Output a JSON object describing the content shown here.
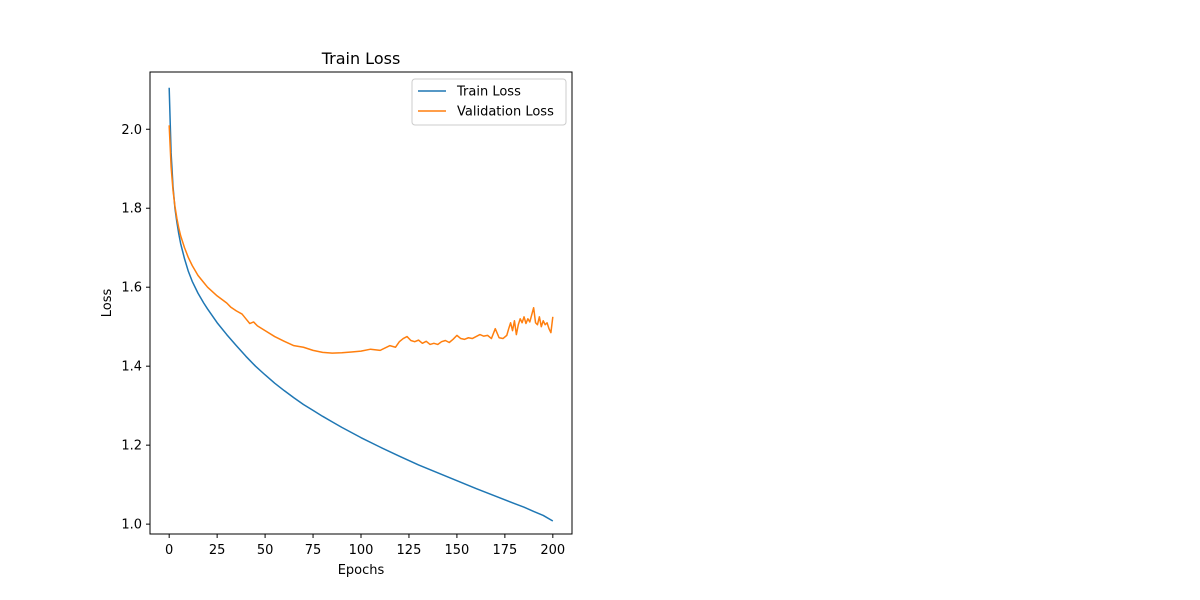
{
  "chart_data": {
    "type": "line",
    "title": "Train Loss",
    "xlabel": "Epochs",
    "ylabel": "Loss",
    "xlim": [
      -10,
      210
    ],
    "ylim": [
      0.975,
      2.145
    ],
    "xticks": [
      0,
      25,
      50,
      75,
      100,
      125,
      150,
      175,
      200
    ],
    "yticks": [
      1.0,
      1.2,
      1.4,
      1.6,
      1.8,
      2.0
    ],
    "ytick_labels": [
      "1.0",
      "1.2",
      "1.4",
      "1.6",
      "1.8",
      "2.0"
    ],
    "grid": false,
    "legend_position": "upper right",
    "series": [
      {
        "name": "Train Loss",
        "color": "#1f77b4",
        "x": [
          0,
          1,
          2,
          3,
          4,
          5,
          6,
          8,
          10,
          12,
          15,
          18,
          20,
          25,
          30,
          35,
          40,
          45,
          50,
          55,
          60,
          65,
          70,
          75,
          80,
          85,
          90,
          95,
          100,
          110,
          120,
          130,
          140,
          150,
          160,
          170,
          180,
          185,
          190,
          195,
          200
        ],
        "y": [
          2.105,
          1.94,
          1.855,
          1.8,
          1.765,
          1.735,
          1.71,
          1.672,
          1.64,
          1.615,
          1.585,
          1.56,
          1.545,
          1.51,
          1.48,
          1.452,
          1.425,
          1.4,
          1.378,
          1.357,
          1.338,
          1.32,
          1.303,
          1.288,
          1.273,
          1.259,
          1.245,
          1.232,
          1.219,
          1.195,
          1.172,
          1.15,
          1.13,
          1.11,
          1.09,
          1.071,
          1.052,
          1.043,
          1.032,
          1.022,
          1.008
        ]
      },
      {
        "name": "Validation Loss",
        "color": "#ff7f0e",
        "x": [
          0,
          1,
          2,
          3,
          4,
          5,
          6,
          8,
          10,
          12,
          15,
          18,
          20,
          25,
          30,
          32,
          35,
          38,
          40,
          42,
          44,
          46,
          48,
          50,
          55,
          60,
          65,
          70,
          75,
          80,
          85,
          90,
          95,
          100,
          105,
          110,
          115,
          118,
          120,
          122,
          124,
          126,
          128,
          130,
          132,
          134,
          136,
          138,
          140,
          142,
          144,
          146,
          148,
          150,
          152,
          154,
          156,
          158,
          160,
          162,
          164,
          166,
          168,
          170,
          172,
          174,
          176,
          177,
          178,
          179,
          180,
          181,
          182,
          183,
          184,
          185,
          186,
          187,
          188,
          189,
          190,
          191,
          192,
          193,
          194,
          195,
          196,
          197,
          198,
          199,
          200
        ],
        "y": [
          2.01,
          1.905,
          1.845,
          1.805,
          1.775,
          1.75,
          1.73,
          1.7,
          1.675,
          1.655,
          1.63,
          1.612,
          1.6,
          1.578,
          1.56,
          1.55,
          1.54,
          1.532,
          1.52,
          1.508,
          1.512,
          1.502,
          1.496,
          1.49,
          1.475,
          1.463,
          1.452,
          1.448,
          1.44,
          1.435,
          1.433,
          1.434,
          1.436,
          1.438,
          1.443,
          1.44,
          1.452,
          1.448,
          1.462,
          1.47,
          1.475,
          1.465,
          1.462,
          1.466,
          1.458,
          1.463,
          1.455,
          1.458,
          1.455,
          1.462,
          1.465,
          1.46,
          1.468,
          1.478,
          1.47,
          1.468,
          1.472,
          1.47,
          1.475,
          1.48,
          1.476,
          1.478,
          1.47,
          1.495,
          1.472,
          1.47,
          1.478,
          1.495,
          1.51,
          1.49,
          1.515,
          1.48,
          1.505,
          1.52,
          1.51,
          1.525,
          1.508,
          1.52,
          1.512,
          1.53,
          1.548,
          1.51,
          1.505,
          1.525,
          1.5,
          1.515,
          1.505,
          1.51,
          1.495,
          1.485,
          1.525
        ]
      }
    ]
  }
}
